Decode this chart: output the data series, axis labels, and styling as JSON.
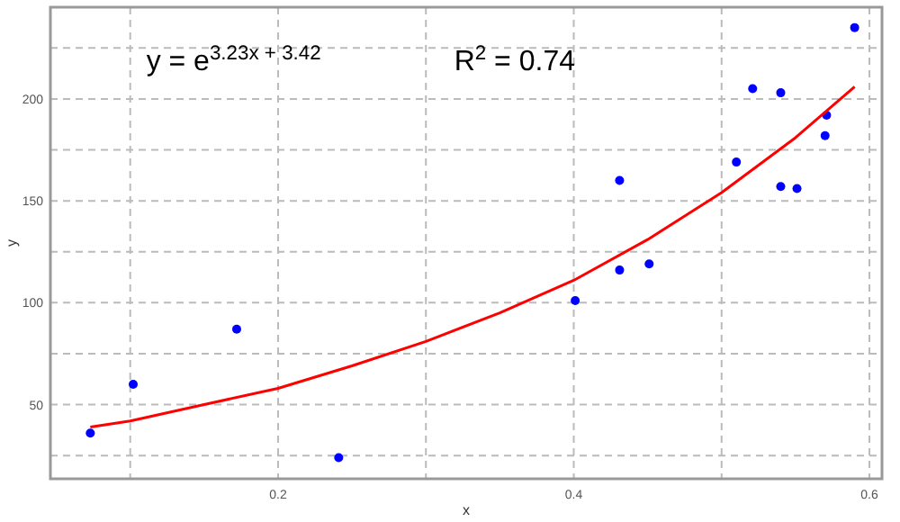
{
  "chart_data": {
    "type": "scatter",
    "xlabel": "x",
    "ylabel": "y",
    "annotations": [
      "y = e$^{3.23x + 3.42}$",
      "R$^{2}$ = 0.74"
    ],
    "xlim": [
      0.046,
      0.6085
    ],
    "ylim": [
      13.6,
      245
    ],
    "xticks": [
      {
        "value": 0.1,
        "label": null
      },
      0.2,
      {
        "value": 0.3,
        "label": null
      },
      0.4,
      {
        "value": 0.5,
        "label": null
      },
      0.6
    ],
    "yticks": [
      {
        "value": 25,
        "label": null
      },
      50,
      {
        "value": 75,
        "label": null
      },
      100,
      {
        "value": 125,
        "label": null
      },
      150,
      {
        "value": 175,
        "label": null
      },
      200,
      {
        "value": 225,
        "label": null
      }
    ],
    "grid": true,
    "series": [
      {
        "color": "#0000ff",
        "marker": "circle",
        "x": [
          0.073,
          0.102,
          0.172,
          0.241,
          0.401,
          0.431,
          0.431,
          0.451,
          0.51,
          0.521,
          0.54,
          0.54,
          0.551,
          0.571,
          0.57,
          0.59
        ],
        "values": [
          36,
          60,
          87,
          24,
          101,
          160,
          116,
          119,
          169,
          205,
          203,
          157,
          156,
          192,
          182,
          235
        ]
      },
      {
        "type": "line",
        "color": "#ff0000",
        "marker": "none",
        "x": [
          0.073,
          0.1,
          0.15,
          0.2,
          0.25,
          0.3,
          0.35,
          0.4,
          0.45,
          0.5,
          0.55,
          0.59
        ],
        "values": [
          39,
          42,
          50,
          58,
          69,
          81,
          95,
          111,
          131,
          154,
          181,
          206
        ]
      }
    ]
  }
}
